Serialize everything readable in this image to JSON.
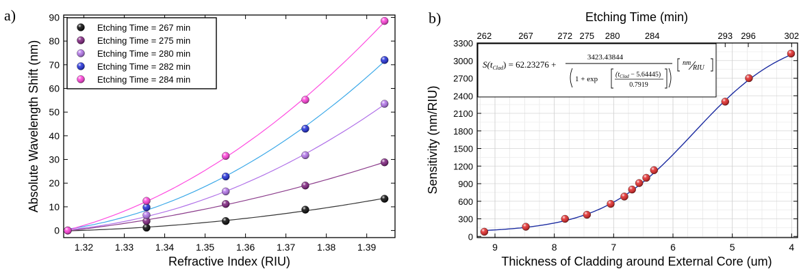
{
  "chart_data": [
    {
      "panel_label": "a)",
      "type": "scatter",
      "xlabel": "Refractive Index (RIU)",
      "ylabel": "Absolute Wavelength Shift (nm)",
      "xlim": [
        1.315,
        1.397
      ],
      "ylim": [
        -3,
        91
      ],
      "xticks": [
        "1.32",
        "1.33",
        "1.34",
        "1.35",
        "1.36",
        "1.37",
        "1.38",
        "1.39"
      ],
      "xtick_values": [
        1.32,
        1.33,
        1.34,
        1.35,
        1.36,
        1.37,
        1.38,
        1.39
      ],
      "yticks": [
        "0",
        "10",
        "20",
        "30",
        "40",
        "50",
        "60",
        "70",
        "80",
        "90"
      ],
      "ytick_values": [
        0,
        10,
        20,
        30,
        40,
        50,
        60,
        70,
        80,
        90
      ],
      "legend_position": "top-left",
      "series": [
        {
          "name": "Etching Time = 267 min",
          "color": "#000000",
          "fit_color": "#333333",
          "x": [
            1.316,
            1.3355,
            1.3551,
            1.3748,
            1.3944
          ],
          "y": [
            0,
            1.2,
            4.0,
            8.8,
            13.4
          ]
        },
        {
          "name": "Etching Time = 275 min",
          "color": "#7a1a7a",
          "fit_color": "#8a3a8a",
          "x": [
            1.316,
            1.3355,
            1.3551,
            1.3748,
            1.3944
          ],
          "y": [
            0,
            4.0,
            11.2,
            19.0,
            28.8
          ]
        },
        {
          "name": "Etching Time = 280 min",
          "color": "#b070e8",
          "fit_color": "#b070e8",
          "x": [
            1.316,
            1.3355,
            1.3551,
            1.3748,
            1.3944
          ],
          "y": [
            0,
            6.5,
            16.5,
            31.8,
            53.5
          ]
        },
        {
          "name": "Etching Time = 282 min",
          "color": "#1a28d8",
          "fit_color": "#3aa8e8",
          "x": [
            1.316,
            1.3355,
            1.3551,
            1.3748,
            1.3944
          ],
          "y": [
            0,
            9.8,
            22.8,
            43.0,
            72.0
          ]
        },
        {
          "name": "Etching Time = 284 min",
          "color": "#ff3ad8",
          "fit_color": "#ff4ae0",
          "x": [
            1.316,
            1.3355,
            1.3551,
            1.3748,
            1.3944
          ],
          "y": [
            0,
            12.5,
            31.5,
            55.2,
            88.5
          ]
        }
      ]
    },
    {
      "panel_label": "b)",
      "type": "scatter",
      "title": "Etching Time (min)",
      "xlabel": "Thickness of Cladding around External Core (um)",
      "ylabel": "Sensitivity (nm/RIU)",
      "x_reversed": true,
      "xlim": [
        9.3,
        3.9
      ],
      "ylim": [
        -20,
        3300
      ],
      "xticks": [
        "9",
        "8",
        "7",
        "6",
        "5",
        "4"
      ],
      "xtick_values": [
        9,
        8,
        7,
        6,
        5,
        4
      ],
      "yticks": [
        "0",
        "300",
        "600",
        "900",
        "1200",
        "1500",
        "1800",
        "2100",
        "2400",
        "2700",
        "3000",
        "3300"
      ],
      "ytick_values": [
        0,
        300,
        600,
        900,
        1200,
        1500,
        1800,
        2100,
        2400,
        2700,
        3000,
        3300
      ],
      "top_axis_ticks": [
        "262",
        "267",
        "272",
        "275",
        "280",
        "284",
        "293",
        "296",
        "302"
      ],
      "top_axis_positions": [
        9.18,
        8.48,
        7.82,
        7.45,
        7.02,
        6.35,
        5.12,
        4.73,
        4.0
      ],
      "grid": true,
      "marker_color": "#e02020",
      "fit_color": "#1a2aa0",
      "x": [
        9.18,
        8.48,
        7.82,
        7.45,
        7.05,
        6.82,
        6.69,
        6.57,
        6.45,
        6.32,
        5.12,
        4.72,
        4.01
      ],
      "y": [
        80,
        165,
        300,
        370,
        555,
        680,
        800,
        910,
        1000,
        1130,
        2300,
        2700,
        3120
      ],
      "fit": {
        "y0": 62.23276,
        "A": 3423.43844,
        "x0": 5.64445,
        "w": 0.7919
      },
      "equation": {
        "lhs": "S(t",
        "lhs_sub": "Clad",
        "lhs_end": ") = 62.23276 +",
        "numerator": "3423.43844",
        "denom_prefix": "1 + exp",
        "inner_top": "(t",
        "inner_top_sub": "Clad",
        "inner_top_end": " − 5.64445)",
        "inner_bottom": "0.7919",
        "unit_top": "nm",
        "unit_bottom": "RIU"
      }
    }
  ]
}
